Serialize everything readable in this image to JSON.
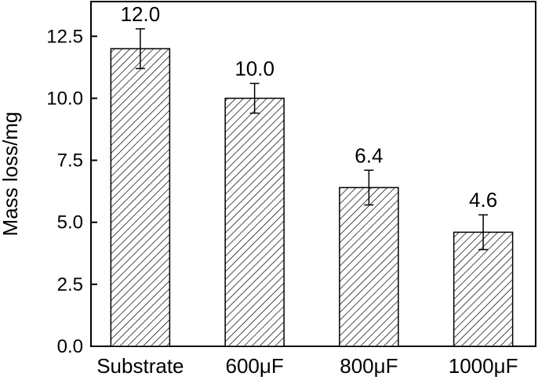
{
  "chart_data": {
    "type": "bar",
    "title": "",
    "xlabel": "",
    "ylabel": "Mass loss/mg",
    "categories": [
      "Substrate",
      "600μF",
      "800μF",
      "1000μF"
    ],
    "values": [
      12.0,
      10.0,
      6.4,
      4.6
    ],
    "value_labels": [
      "12.0",
      "10.0",
      "6.4",
      "4.6"
    ],
    "error_bars": [
      0.8,
      0.6,
      0.7,
      0.7
    ],
    "ylim": [
      0,
      13.9
    ],
    "yticks": [
      0.0,
      2.5,
      5.0,
      7.5,
      10.0,
      12.5
    ],
    "ytick_labels": [
      "0.0",
      "2.5",
      "5.0",
      "7.5",
      "10.0",
      "12.5"
    ],
    "bar_fill": "diagonal-hatch",
    "bar_color": "#000000",
    "grid": false,
    "legend": "none"
  }
}
